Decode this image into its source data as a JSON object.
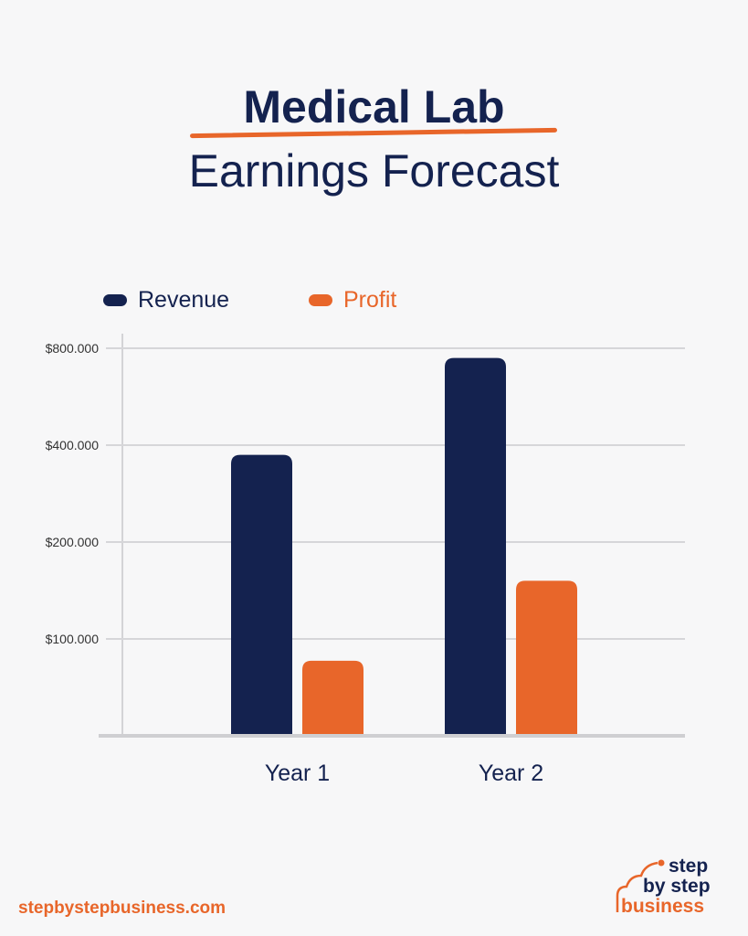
{
  "chart_data": {
    "type": "bar",
    "title_line1": "Medical Lab",
    "title_line2": "Earnings Forecast",
    "categories": [
      "Year 1",
      "Year 2"
    ],
    "series": [
      {
        "name": "Revenue",
        "color": "#14224f",
        "values": [
          380000,
          760000
        ]
      },
      {
        "name": "Profit",
        "color": "#e8662a",
        "values": [
          77000,
          160000
        ]
      }
    ],
    "yticks": [
      100000,
      200000,
      400000,
      800000
    ],
    "ytick_labels": [
      "$100.000",
      "$200.000",
      "$400.000",
      "$800.000"
    ],
    "y_scale": "non-uniform (equally spaced ticks at doubling values)",
    "grid": true,
    "legend_position": "top-left"
  },
  "footer": {
    "url": "stepbystepbusiness.com"
  },
  "logo": {
    "text": "step by step business"
  }
}
